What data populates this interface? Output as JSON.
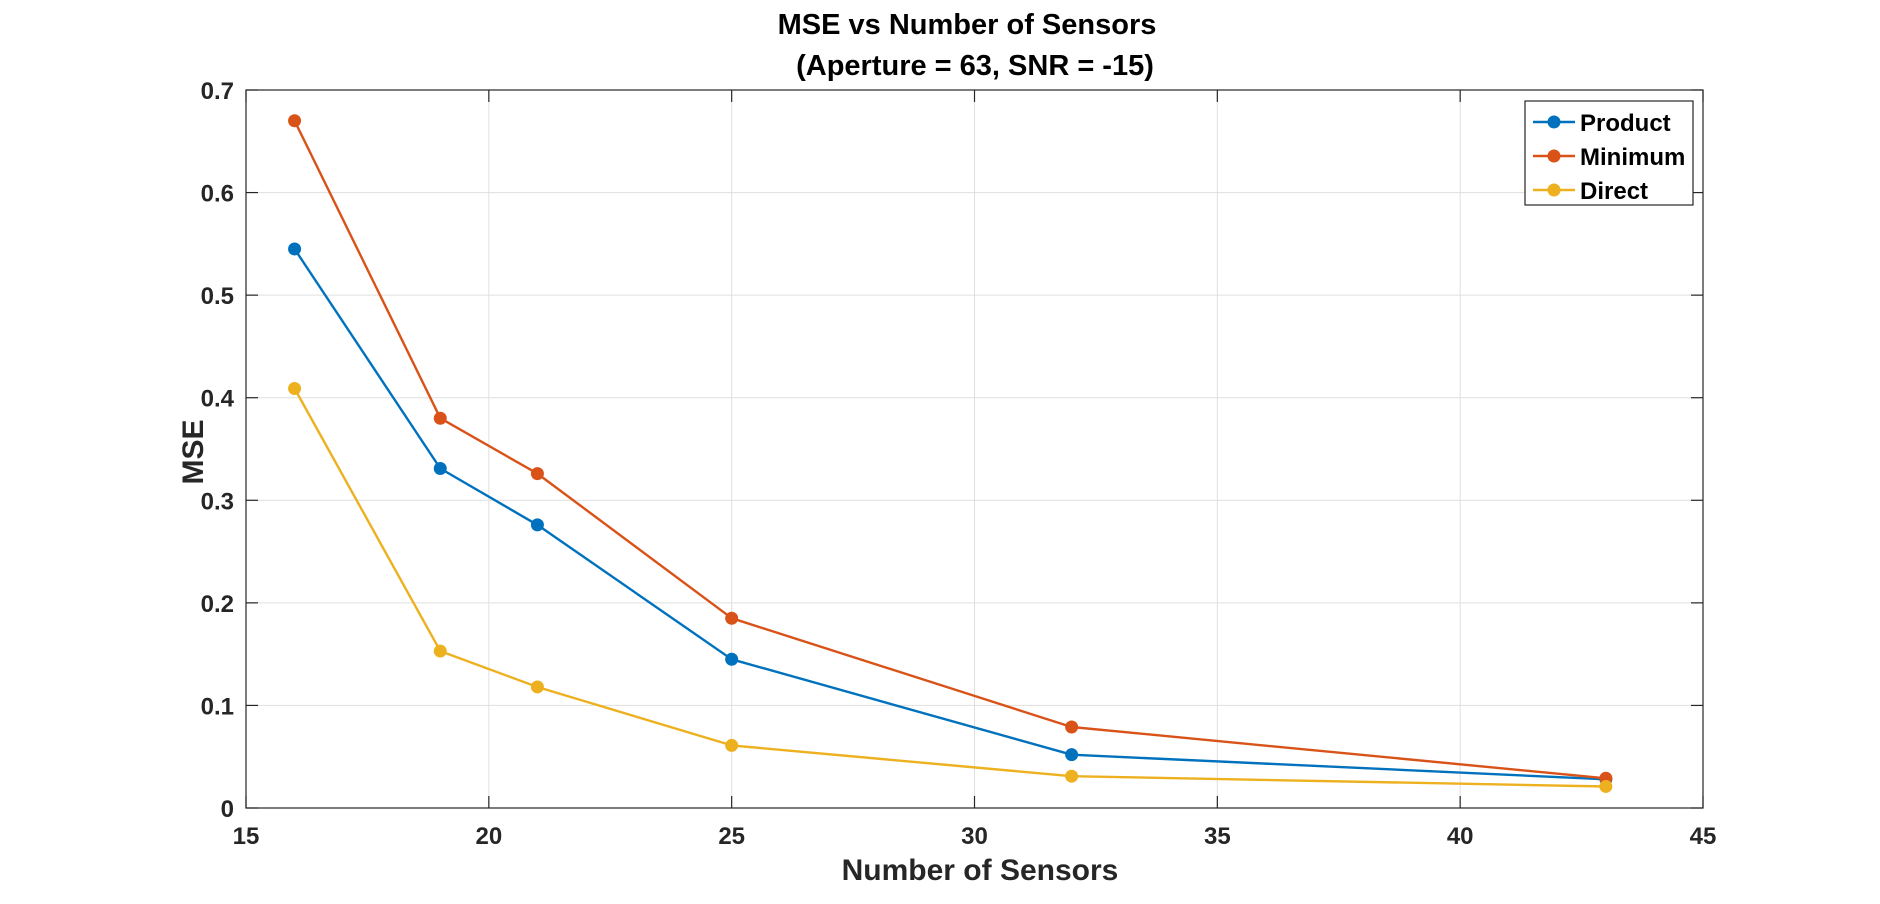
{
  "chart_data": {
    "type": "line",
    "title": "MSE vs Number of Sensors",
    "subtitle": "(Aperture = 63, SNR = -15)",
    "xlabel": "Number of Sensors",
    "ylabel": "MSE",
    "xlim": [
      15,
      45
    ],
    "ylim": [
      0,
      0.7
    ],
    "xticks": [
      15,
      20,
      25,
      30,
      35,
      40,
      45
    ],
    "yticks": [
      0,
      0.1,
      0.2,
      0.3,
      0.4,
      0.5,
      0.6,
      0.7
    ],
    "xtick_labels": [
      "15",
      "20",
      "25",
      "30",
      "35",
      "40",
      "45"
    ],
    "ytick_labels": [
      "0",
      "0.1",
      "0.2",
      "0.3",
      "0.4",
      "0.5",
      "0.6",
      "0.7"
    ],
    "grid": true,
    "legend_position": "top-right",
    "x": [
      16,
      19,
      21,
      25,
      32,
      43
    ],
    "series": [
      {
        "name": "Product",
        "color": "#0072bd",
        "values": [
          0.545,
          0.331,
          0.276,
          0.145,
          0.052,
          0.028
        ]
      },
      {
        "name": "Minimum",
        "color": "#d95319",
        "values": [
          0.67,
          0.38,
          0.326,
          0.185,
          0.079,
          0.029
        ]
      },
      {
        "name": "Direct",
        "color": "#edb120",
        "values": [
          0.409,
          0.153,
          0.118,
          0.061,
          0.031,
          0.021
        ]
      }
    ]
  }
}
